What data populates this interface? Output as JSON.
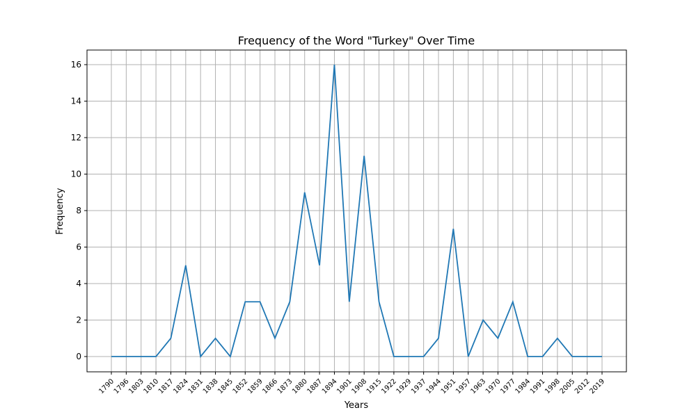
{
  "chart_data": {
    "type": "line",
    "title": "Frequency of the Word \"Turkey\" Over Time",
    "xlabel": "Years",
    "ylabel": "Frequency",
    "categories": [
      "1790",
      "1796",
      "1803",
      "1810",
      "1817",
      "1824",
      "1831",
      "1838",
      "1845",
      "1852",
      "1859",
      "1866",
      "1873",
      "1880",
      "1887",
      "1894",
      "1901",
      "1908",
      "1915",
      "1922",
      "1929",
      "1937",
      "1944",
      "1951",
      "1957",
      "1963",
      "1970",
      "1977",
      "1984",
      "1991",
      "1998",
      "2005",
      "2012",
      "2019"
    ],
    "series": [
      {
        "values": [
          0,
          0,
          0,
          0,
          1,
          5,
          0,
          1,
          0,
          3,
          3,
          1,
          3,
          9,
          5,
          16,
          3,
          11,
          3,
          0,
          0,
          0,
          1,
          7,
          0,
          2,
          1,
          3,
          0,
          0,
          1,
          0,
          0,
          0
        ]
      }
    ],
    "yticks": [
      0,
      2,
      4,
      6,
      8,
      10,
      12,
      14,
      16
    ],
    "ylim": [
      -0.8,
      16.8
    ],
    "grid": true,
    "line_color": "#1f77b4"
  }
}
